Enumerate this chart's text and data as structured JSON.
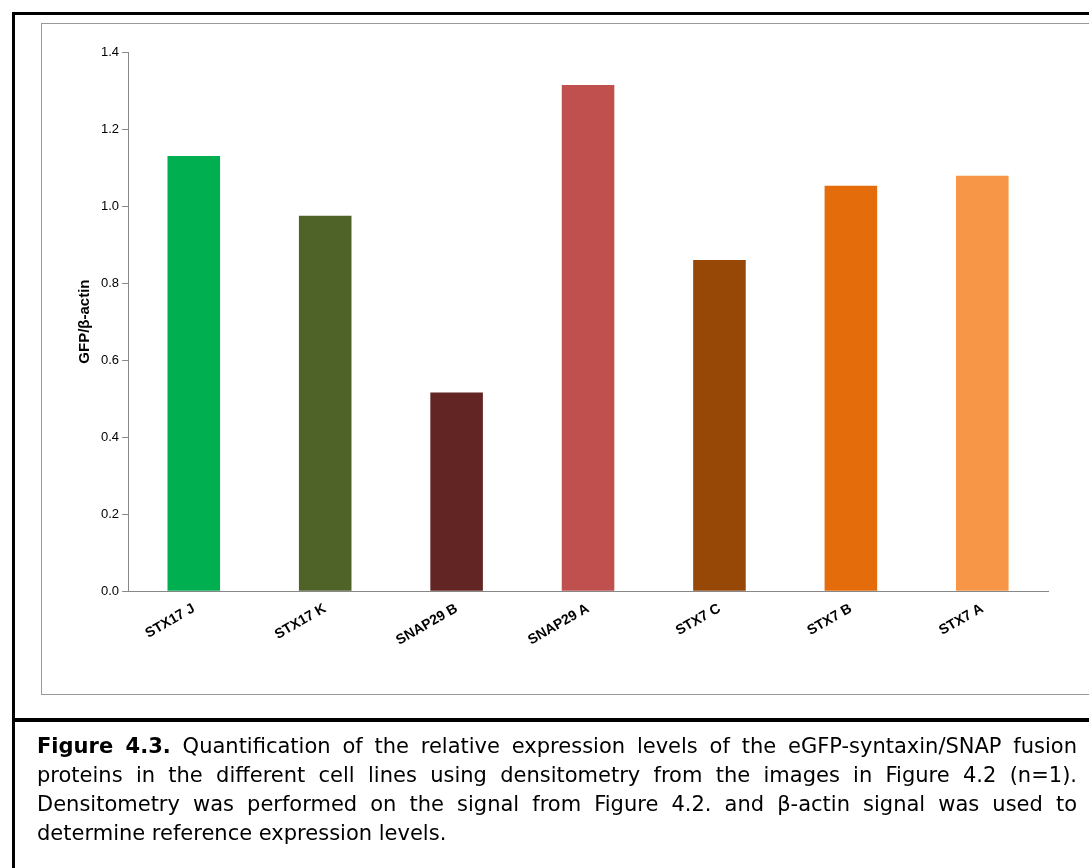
{
  "chart_data": {
    "type": "bar",
    "ylabel": "GFP/β-actin",
    "categories": [
      "STX17 J",
      "STX17 K",
      "SNAP29 B",
      "SNAP29 A",
      "STX7 C",
      "STX7 B",
      "STX7 A"
    ],
    "values": [
      1.13,
      0.975,
      0.516,
      1.314,
      0.86,
      1.053,
      1.079
    ],
    "colors": [
      "#00b050",
      "#4f6228",
      "#632523",
      "#c0504d",
      "#974706",
      "#e46c0a",
      "#f79646"
    ],
    "ylim": [
      0,
      1.4
    ],
    "yticks": [
      {
        "value": 0,
        "label": "0.0"
      },
      {
        "value": 0.2,
        "label": "0.2"
      },
      {
        "value": 0.4,
        "label": "0.4"
      },
      {
        "value": 0.6,
        "label": "0.6"
      },
      {
        "value": 0.8,
        "label": "0.8"
      },
      {
        "value": 1,
        "label": "1.0"
      },
      {
        "value": 1.2,
        "label": "1.2"
      },
      {
        "value": 1.4,
        "label": "1.4"
      }
    ],
    "grid": false,
    "legend": false,
    "annotations": [
      "Figure 4.3. Quantification of the relative expression levels of the eGFP-syntaxin/SNAP fusion proteins in the different cell lines using densitometry from the images in Figure 4.2 (n=1). Densitometry was performed on the signal from Figure 4.2. and β-actin signal was used to determine reference expression levels."
    ]
  }
}
